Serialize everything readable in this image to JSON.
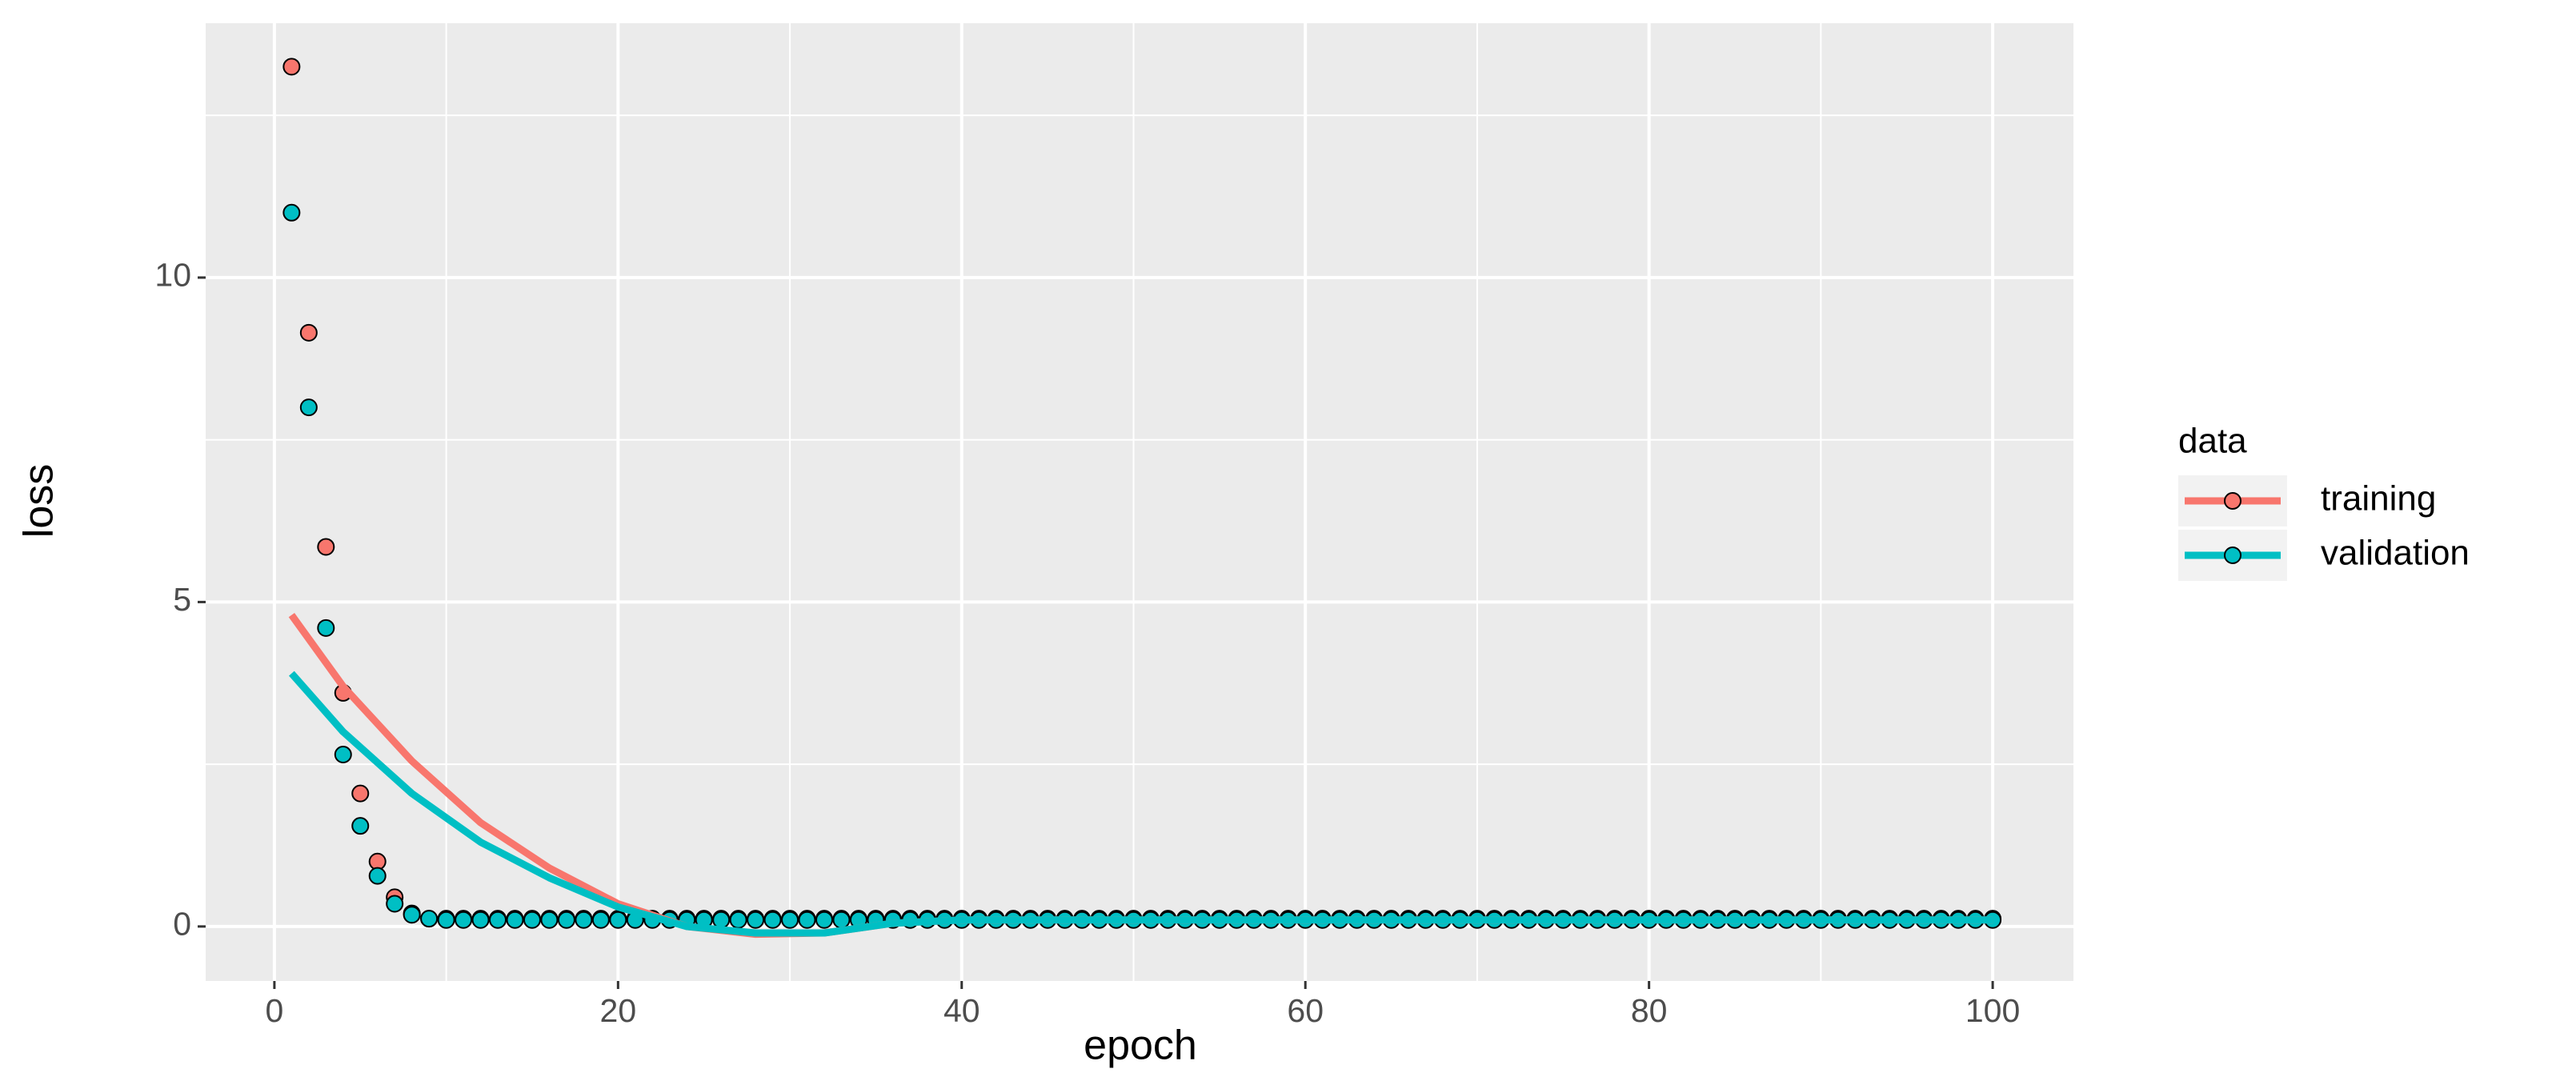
{
  "chart_data": {
    "type": "scatter",
    "xlabel": "epoch",
    "ylabel": "loss",
    "legend_title": "data",
    "legend": "right",
    "grid": true,
    "panel_color": "#ebebeb",
    "xlim": [
      -4,
      104.7
    ],
    "ylim": [
      -0.84,
      13.92
    ],
    "xticks": [
      0,
      20,
      40,
      60,
      80,
      100
    ],
    "yticks": [
      0,
      5,
      10
    ],
    "x": [
      1,
      2,
      3,
      4,
      5,
      6,
      7,
      8,
      9,
      10,
      11,
      12,
      13,
      14,
      15,
      16,
      17,
      18,
      19,
      20,
      21,
      22,
      23,
      24,
      25,
      26,
      27,
      28,
      29,
      30,
      31,
      32,
      33,
      34,
      35,
      36,
      37,
      38,
      39,
      40,
      41,
      42,
      43,
      44,
      45,
      46,
      47,
      48,
      49,
      50,
      51,
      52,
      53,
      54,
      55,
      56,
      57,
      58,
      59,
      60,
      61,
      62,
      63,
      64,
      65,
      66,
      67,
      68,
      69,
      70,
      71,
      72,
      73,
      74,
      75,
      76,
      77,
      78,
      79,
      80,
      81,
      82,
      83,
      84,
      85,
      86,
      87,
      88,
      89,
      90,
      91,
      92,
      93,
      94,
      95,
      96,
      97,
      98,
      99,
      100
    ],
    "series": [
      {
        "name": "training",
        "color": "#F8766D",
        "values": [
          13.25,
          9.15,
          5.85,
          3.6,
          2.05,
          1.0,
          0.45,
          0.2,
          0.12,
          0.12,
          0.12,
          0.12,
          0.12,
          0.12,
          0.12,
          0.12,
          0.12,
          0.12,
          0.12,
          0.12,
          0.12,
          0.12,
          0.12,
          0.12,
          0.12,
          0.12,
          0.12,
          0.12,
          0.12,
          0.12,
          0.12,
          0.12,
          0.12,
          0.12,
          0.12,
          0.12,
          0.12,
          0.12,
          0.12,
          0.12,
          0.12,
          0.12,
          0.12,
          0.12,
          0.12,
          0.12,
          0.12,
          0.12,
          0.12,
          0.12,
          0.12,
          0.12,
          0.12,
          0.12,
          0.12,
          0.12,
          0.12,
          0.12,
          0.12,
          0.12,
          0.12,
          0.12,
          0.12,
          0.12,
          0.12,
          0.12,
          0.12,
          0.12,
          0.12,
          0.12,
          0.12,
          0.12,
          0.12,
          0.12,
          0.12,
          0.12,
          0.12,
          0.12,
          0.12,
          0.12,
          0.12,
          0.12,
          0.12,
          0.12,
          0.12,
          0.12,
          0.12,
          0.12,
          0.12,
          0.12,
          0.12,
          0.12,
          0.12,
          0.12,
          0.12,
          0.12,
          0.12,
          0.12,
          0.12,
          0.12
        ],
        "smooth": {
          "x": [
            1,
            4,
            8,
            12,
            16,
            20,
            24,
            28,
            32,
            36,
            40,
            50,
            60,
            70,
            80,
            90,
            100
          ],
          "values": [
            4.8,
            3.7,
            2.55,
            1.6,
            0.9,
            0.35,
            0.0,
            -0.12,
            -0.1,
            0.05,
            0.1,
            0.1,
            0.1,
            0.1,
            0.1,
            0.1,
            0.1
          ]
        }
      },
      {
        "name": "validation",
        "color": "#00BFC4",
        "values": [
          11.0,
          8.0,
          4.6,
          2.65,
          1.55,
          0.78,
          0.35,
          0.18,
          0.12,
          0.1,
          0.1,
          0.1,
          0.1,
          0.1,
          0.1,
          0.1,
          0.1,
          0.1,
          0.1,
          0.1,
          0.1,
          0.1,
          0.1,
          0.1,
          0.1,
          0.1,
          0.1,
          0.1,
          0.1,
          0.1,
          0.1,
          0.1,
          0.1,
          0.1,
          0.1,
          0.1,
          0.1,
          0.1,
          0.1,
          0.1,
          0.1,
          0.1,
          0.1,
          0.1,
          0.1,
          0.1,
          0.1,
          0.1,
          0.1,
          0.1,
          0.1,
          0.1,
          0.1,
          0.1,
          0.1,
          0.1,
          0.1,
          0.1,
          0.1,
          0.1,
          0.1,
          0.1,
          0.1,
          0.1,
          0.1,
          0.1,
          0.1,
          0.1,
          0.1,
          0.1,
          0.1,
          0.1,
          0.1,
          0.1,
          0.1,
          0.1,
          0.1,
          0.1,
          0.1,
          0.1,
          0.1,
          0.1,
          0.1,
          0.1,
          0.1,
          0.1,
          0.1,
          0.1,
          0.1,
          0.1,
          0.1,
          0.1,
          0.1,
          0.1,
          0.1,
          0.1,
          0.1,
          0.1,
          0.1,
          0.1
        ],
        "smooth": {
          "x": [
            1,
            4,
            8,
            12,
            16,
            20,
            24,
            28,
            32,
            36,
            40,
            50,
            60,
            70,
            80,
            90,
            100
          ],
          "values": [
            3.9,
            3.0,
            2.05,
            1.3,
            0.75,
            0.3,
            0.0,
            -0.1,
            -0.1,
            0.05,
            0.1,
            0.1,
            0.1,
            0.1,
            0.1,
            0.1,
            0.1
          ]
        }
      }
    ]
  }
}
